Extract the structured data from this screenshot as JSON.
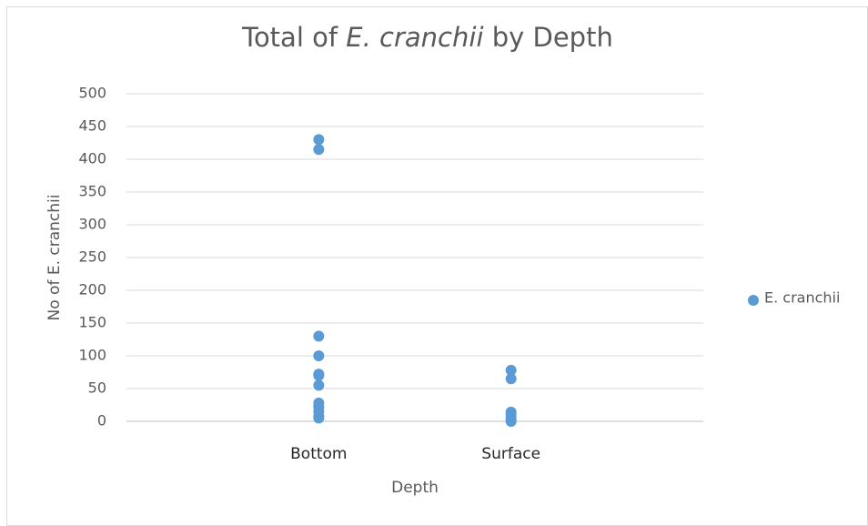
{
  "chart_data": {
    "type": "scatter",
    "title": [
      {
        "text": "Total of "
      },
      {
        "text": "E. cranchii",
        "italic": true
      },
      {
        "text": " by Depth"
      }
    ],
    "x_label": "Depth",
    "y_label": "No of E. cranchii",
    "categories": [
      "Bottom",
      "Surface"
    ],
    "series": [
      {
        "name": "E. cranchii",
        "color": "#5b9bd5",
        "x": [
          "Bottom",
          "Bottom",
          "Bottom",
          "Bottom",
          "Bottom",
          "Bottom",
          "Bottom",
          "Bottom",
          "Bottom",
          "Bottom",
          "Bottom",
          "Bottom",
          "Surface",
          "Surface",
          "Surface",
          "Surface",
          "Surface",
          "Surface",
          "Surface"
        ],
        "values": [
          430,
          415,
          130,
          100,
          72,
          70,
          55,
          28,
          22,
          15,
          8,
          5,
          78,
          65,
          14,
          10,
          5,
          2,
          0
        ]
      }
    ],
    "ylim": [
      0,
      500
    ],
    "yticks": [
      0,
      50,
      100,
      150,
      200,
      250,
      300,
      350,
      400,
      450,
      500
    ],
    "grid": true,
    "legend": "right"
  }
}
